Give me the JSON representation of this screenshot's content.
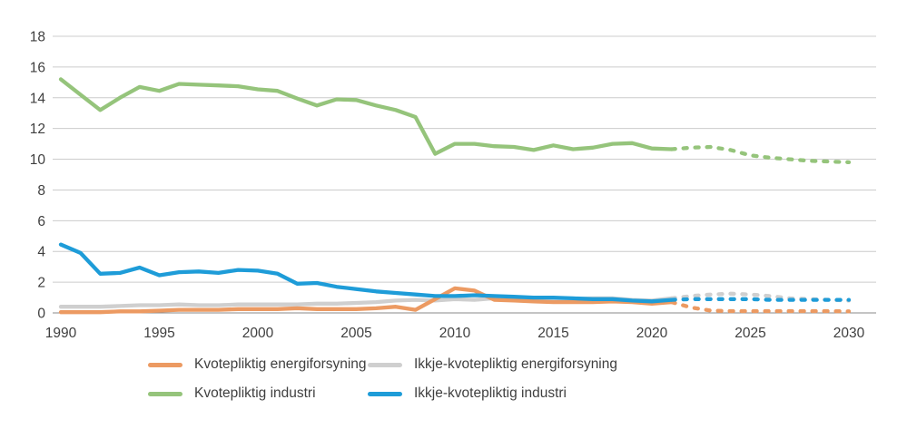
{
  "chart_data": {
    "type": "line",
    "title": "",
    "xlabel": "",
    "ylabel": "",
    "ylim": [
      0,
      18
    ],
    "yticks": [
      0,
      2,
      4,
      6,
      8,
      10,
      12,
      14,
      16,
      18
    ],
    "xticks": [
      1990,
      1995,
      2000,
      2005,
      2010,
      2015,
      2020,
      2025,
      2030
    ],
    "x_solid": [
      1990,
      1991,
      1992,
      1993,
      1994,
      1995,
      1996,
      1997,
      1998,
      1999,
      2000,
      2001,
      2002,
      2003,
      2004,
      2005,
      2006,
      2007,
      2008,
      2009,
      2010,
      2011,
      2012,
      2013,
      2014,
      2015,
      2016,
      2017,
      2018,
      2019,
      2020,
      2021
    ],
    "x_projection": [
      2021,
      2022,
      2023,
      2024,
      2025,
      2026,
      2027,
      2028,
      2029,
      2030
    ],
    "grid": "horizontal",
    "legend_position": "bottom",
    "solid_until": 2021,
    "series": [
      {
        "name": "Kvotepliktig energiforsyning",
        "color": "#EC9A62",
        "values": [
          0.05,
          0.05,
          0.05,
          0.1,
          0.1,
          0.15,
          0.2,
          0.2,
          0.2,
          0.25,
          0.25,
          0.25,
          0.3,
          0.25,
          0.25,
          0.25,
          0.3,
          0.4,
          0.2,
          0.9,
          1.6,
          1.45,
          0.85,
          0.8,
          0.75,
          0.7,
          0.7,
          0.7,
          0.75,
          0.7,
          0.6,
          0.7
        ],
        "projection": [
          0.7,
          0.35,
          0.15,
          0.12,
          0.12,
          0.12,
          0.12,
          0.12,
          0.12,
          0.1
        ]
      },
      {
        "name": "Ikkje-kvotepliktig energiforsyning",
        "color": "#CFCFCF",
        "values": [
          0.4,
          0.4,
          0.4,
          0.45,
          0.5,
          0.5,
          0.55,
          0.5,
          0.5,
          0.55,
          0.55,
          0.55,
          0.55,
          0.6,
          0.6,
          0.65,
          0.7,
          0.8,
          0.85,
          0.8,
          0.9,
          0.85,
          0.95,
          0.9,
          0.9,
          0.95,
          0.9,
          0.95,
          0.95,
          0.85,
          0.8,
          0.95
        ],
        "projection": [
          0.95,
          1.1,
          1.2,
          1.25,
          1.2,
          1.1,
          0.95,
          0.9,
          0.85,
          0.8
        ]
      },
      {
        "name": "Kvotepliktig industri",
        "color": "#95C47B",
        "values": [
          15.2,
          14.2,
          13.2,
          14.0,
          14.7,
          14.45,
          14.9,
          14.85,
          14.8,
          14.75,
          14.55,
          14.45,
          13.95,
          13.5,
          13.9,
          13.85,
          13.5,
          13.2,
          12.75,
          10.35,
          11.0,
          11.0,
          10.85,
          10.8,
          10.6,
          10.9,
          10.65,
          10.75,
          11.0,
          11.05,
          10.7,
          10.65
        ],
        "projection": [
          10.65,
          10.75,
          10.8,
          10.6,
          10.25,
          10.1,
          10.0,
          9.9,
          9.85,
          9.8
        ]
      },
      {
        "name": "Ikkje-kvotepliktig industri",
        "color": "#1E9CD8",
        "values": [
          4.45,
          3.9,
          2.55,
          2.6,
          2.95,
          2.45,
          2.65,
          2.7,
          2.6,
          2.8,
          2.75,
          2.55,
          1.9,
          1.95,
          1.7,
          1.55,
          1.4,
          1.3,
          1.2,
          1.1,
          1.1,
          1.15,
          1.1,
          1.05,
          1.0,
          1.0,
          0.95,
          0.9,
          0.9,
          0.8,
          0.75,
          0.85
        ],
        "projection": [
          0.85,
          0.9,
          0.9,
          0.9,
          0.9,
          0.85,
          0.85,
          0.85,
          0.85,
          0.85
        ]
      }
    ],
    "draw_order": [
      2,
      1,
      0,
      3
    ],
    "colors": {
      "grid": "#cccccc",
      "axis": "#8a8a8a",
      "text": "#3f3f3f"
    }
  },
  "legend": {
    "item_order": [
      0,
      1,
      2,
      3
    ]
  }
}
